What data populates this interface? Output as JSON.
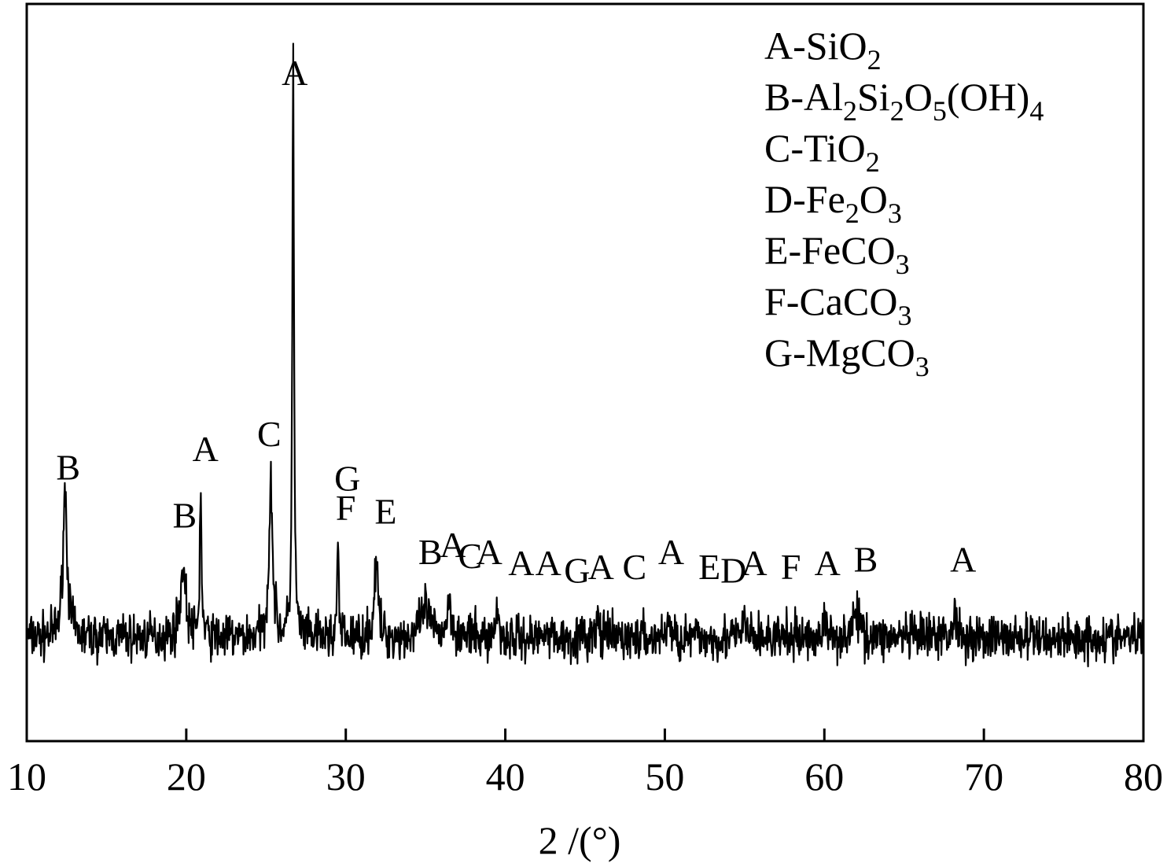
{
  "chart_data": {
    "type": "line",
    "title": "",
    "xlabel": "2 /(°)",
    "ylabel": "",
    "xlim": [
      10,
      80
    ],
    "ylim": [
      0,
      1000
    ],
    "x_ticks": [
      "10",
      "20",
      "30",
      "40",
      "50",
      "60",
      "70",
      "80"
    ],
    "y_ticks": [],
    "grid": false,
    "legend_position": "top-right",
    "legend": [
      {
        "letter": "A",
        "parts": [
          {
            "t": "A-SiO"
          },
          {
            "t": "2",
            "sub": true
          }
        ]
      },
      {
        "letter": "B",
        "parts": [
          {
            "t": "B-Al"
          },
          {
            "t": "2",
            "sub": true
          },
          {
            "t": "Si"
          },
          {
            "t": "2",
            "sub": true
          },
          {
            "t": "O"
          },
          {
            "t": "5",
            "sub": true
          },
          {
            "t": "(OH)"
          },
          {
            "t": "4",
            "sub": true
          }
        ]
      },
      {
        "letter": "C",
        "parts": [
          {
            "t": "C-TiO"
          },
          {
            "t": "2",
            "sub": true
          }
        ]
      },
      {
        "letter": "D",
        "parts": [
          {
            "t": "D-Fe"
          },
          {
            "t": "2",
            "sub": true
          },
          {
            "t": "O"
          },
          {
            "t": "3",
            "sub": true
          }
        ]
      },
      {
        "letter": "E",
        "parts": [
          {
            "t": "E-FeCO"
          },
          {
            "t": "3",
            "sub": true
          }
        ]
      },
      {
        "letter": "F",
        "parts": [
          {
            "t": "F-CaCO"
          },
          {
            "t": "3",
            "sub": true
          }
        ]
      },
      {
        "letter": "G",
        "parts": [
          {
            "t": "G-MgCO"
          },
          {
            "t": "3",
            "sub": true
          }
        ]
      }
    ],
    "series": [
      {
        "baseline": 140,
        "noise": 22,
        "peaks": [
          {
            "x": 12.4,
            "h": 200,
            "w": 0.16
          },
          {
            "x": 19.8,
            "h": 95,
            "w": 0.2
          },
          {
            "x": 20.9,
            "h": 210,
            "w": 0.06
          },
          {
            "x": 25.3,
            "h": 210,
            "w": 0.14
          },
          {
            "x": 26.7,
            "h": 800,
            "w": 0.06
          },
          {
            "x": 29.5,
            "h": 125,
            "w": 0.06
          },
          {
            "x": 31.9,
            "h": 100,
            "w": 0.14
          },
          {
            "x": 35.0,
            "h": 40,
            "w": 0.3
          },
          {
            "x": 36.5,
            "h": 45,
            "w": 0.2
          },
          {
            "x": 39.5,
            "h": 40,
            "w": 0.1
          },
          {
            "x": 42.5,
            "h": 25,
            "w": 0.1
          },
          {
            "x": 45.8,
            "h": 25,
            "w": 0.1
          },
          {
            "x": 50.2,
            "h": 30,
            "w": 0.1
          },
          {
            "x": 55.0,
            "h": 30,
            "w": 0.1
          },
          {
            "x": 60.0,
            "h": 25,
            "w": 0.1
          },
          {
            "x": 62.0,
            "h": 30,
            "w": 0.3
          },
          {
            "x": 68.2,
            "h": 30,
            "w": 0.2
          }
        ]
      }
    ],
    "annotations": [
      {
        "text": "B",
        "x": 12.6,
        "y": 355
      },
      {
        "text": "B",
        "x": 19.9,
        "y": 290
      },
      {
        "text": "A",
        "x": 21.2,
        "y": 380
      },
      {
        "text": "C",
        "x": 25.2,
        "y": 400
      },
      {
        "text": "A",
        "x": 26.8,
        "y": 890
      },
      {
        "text": "G",
        "x": 30.1,
        "y": 340
      },
      {
        "text": "F",
        "x": 30.0,
        "y": 300
      },
      {
        "text": "E",
        "x": 32.5,
        "y": 295
      },
      {
        "text": "B",
        "x": 35.3,
        "y": 240
      },
      {
        "text": "A",
        "x": 36.7,
        "y": 250
      },
      {
        "text": "C",
        "x": 37.8,
        "y": 235
      },
      {
        "text": "A",
        "x": 39.0,
        "y": 240
      },
      {
        "text": "A",
        "x": 41.0,
        "y": 225
      },
      {
        "text": "A",
        "x": 42.7,
        "y": 225
      },
      {
        "text": "G",
        "x": 44.5,
        "y": 215
      },
      {
        "text": "A",
        "x": 46.0,
        "y": 220
      },
      {
        "text": "C",
        "x": 48.1,
        "y": 220
      },
      {
        "text": "A",
        "x": 50.4,
        "y": 240
      },
      {
        "text": "E",
        "x": 52.8,
        "y": 220
      },
      {
        "text": "D",
        "x": 54.3,
        "y": 215
      },
      {
        "text": "A",
        "x": 55.6,
        "y": 225
      },
      {
        "text": "F",
        "x": 57.9,
        "y": 220
      },
      {
        "text": "A",
        "x": 60.2,
        "y": 225
      },
      {
        "text": "B",
        "x": 62.6,
        "y": 230
      },
      {
        "text": "A",
        "x": 68.7,
        "y": 230
      }
    ]
  }
}
